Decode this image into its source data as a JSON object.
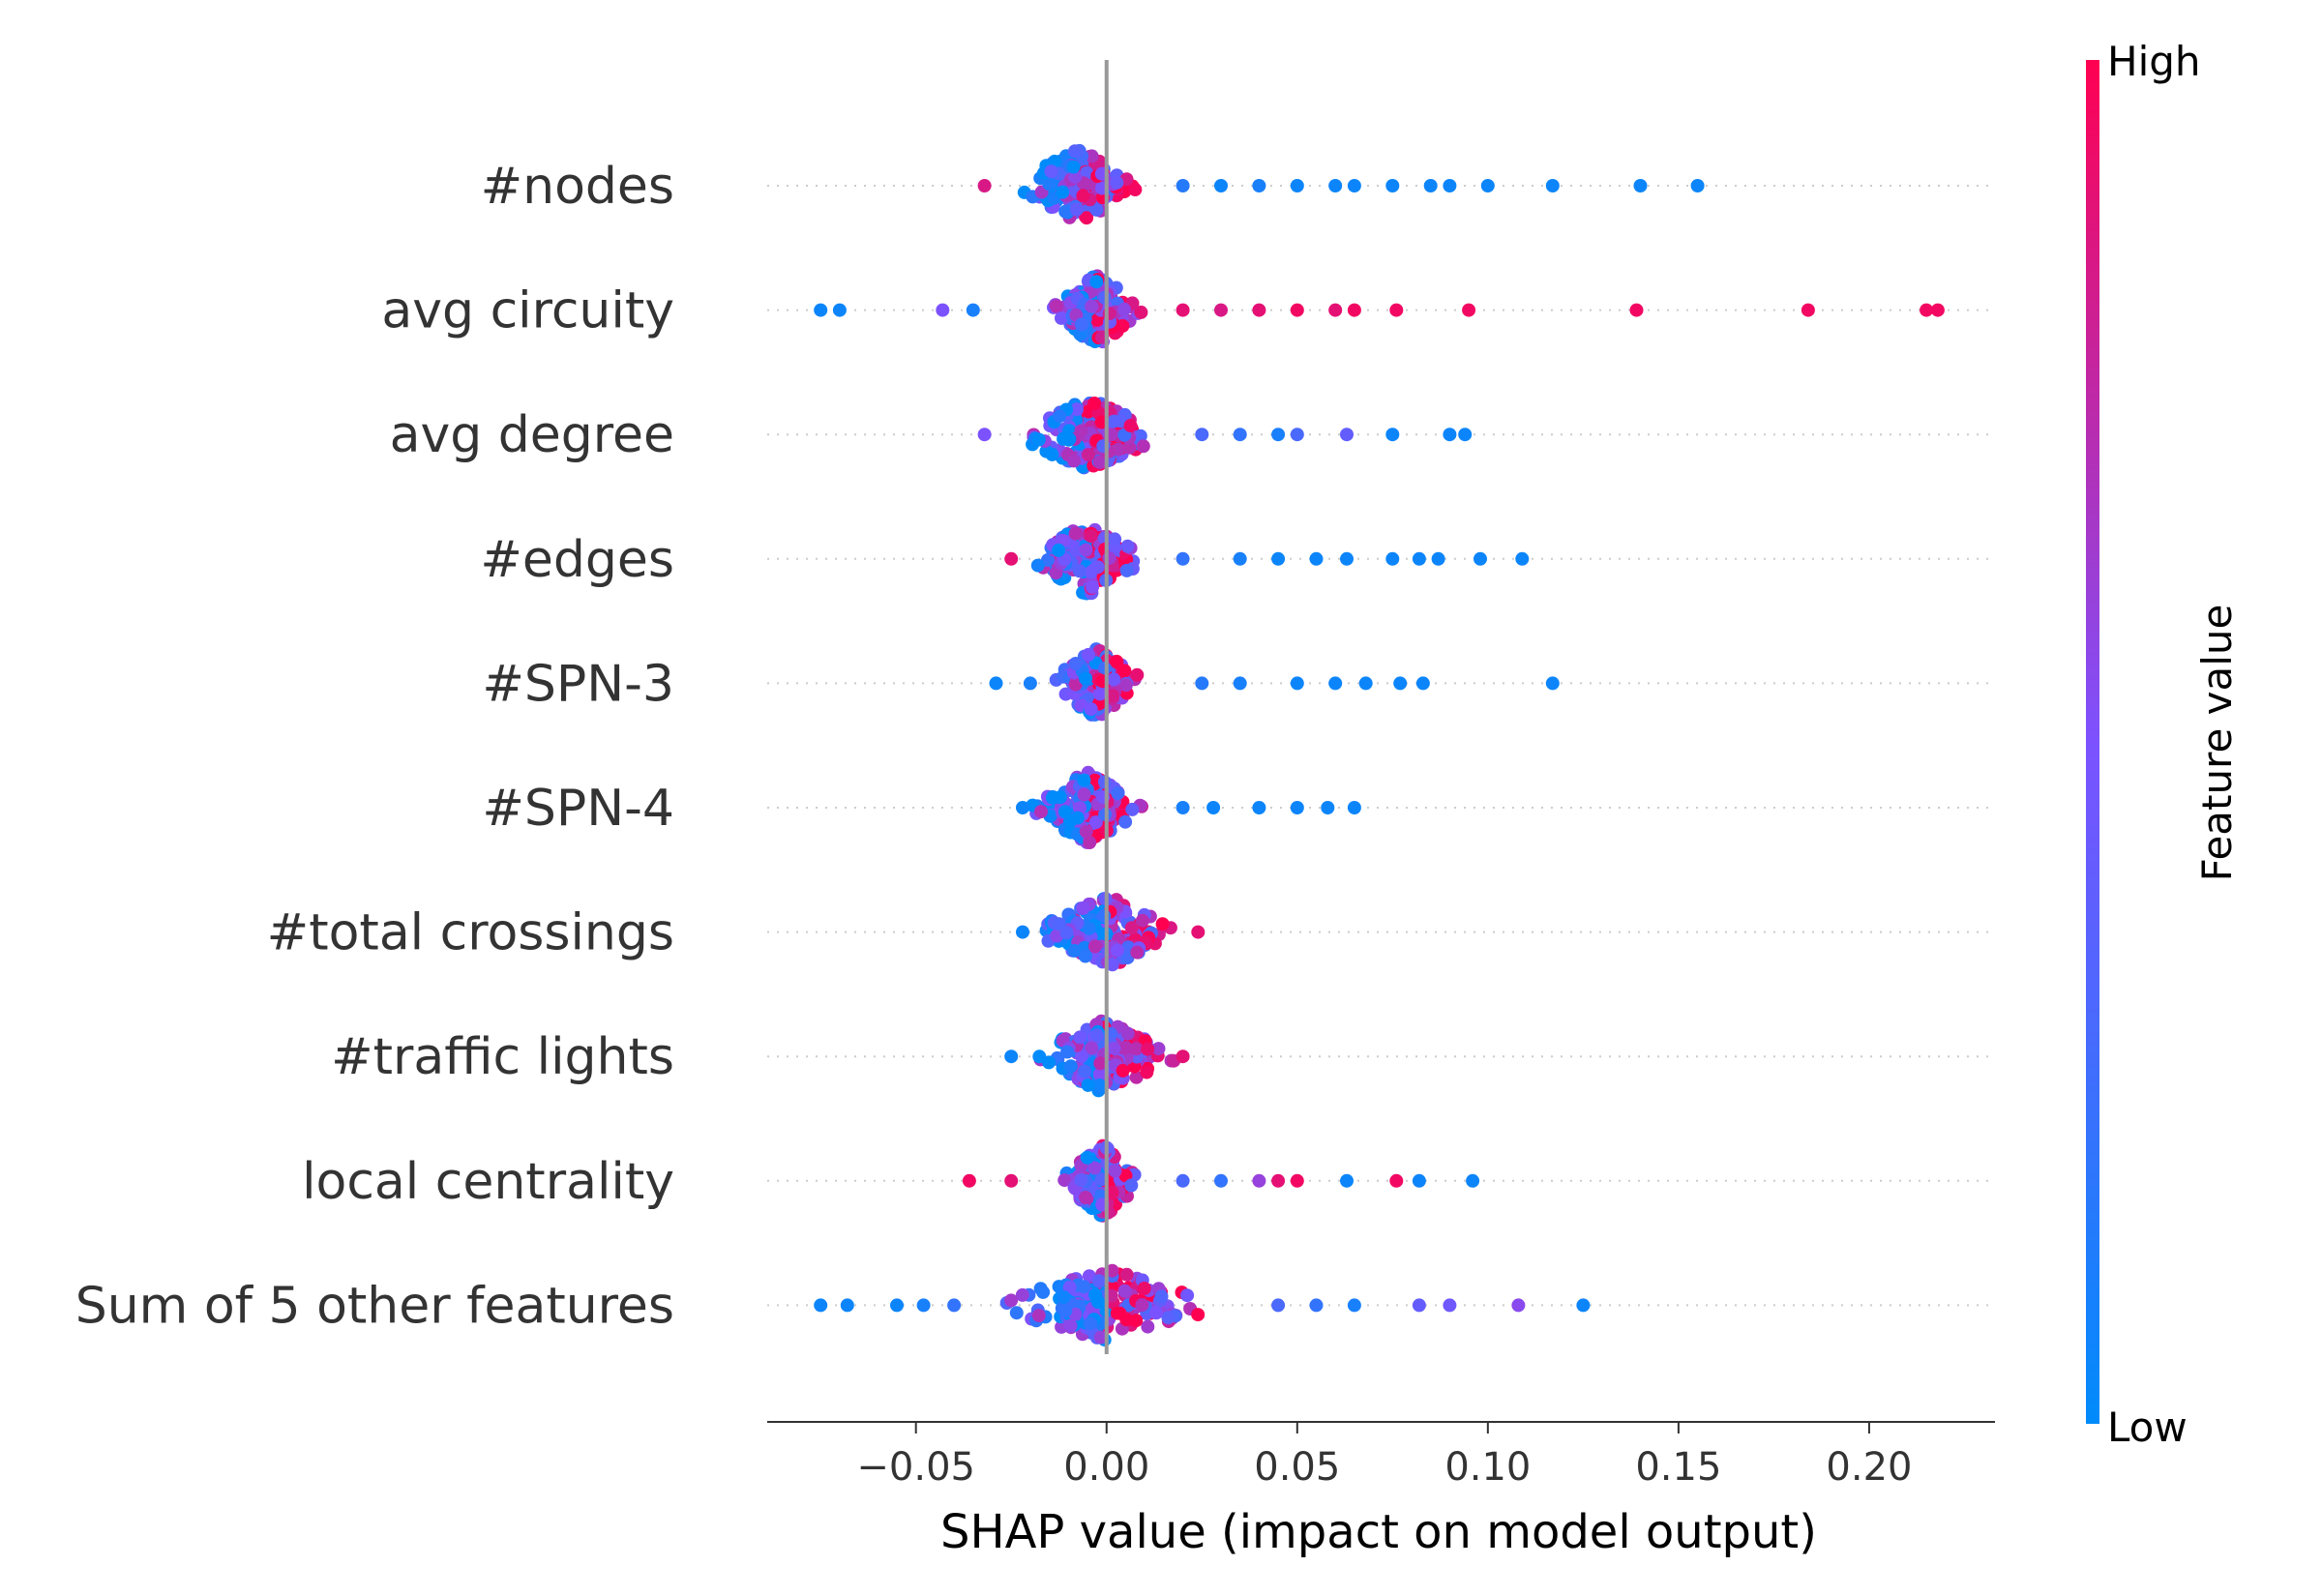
{
  "chart_data": {
    "type": "scatter",
    "subtype": "shap-beeswarm",
    "title": "",
    "xlabel": "SHAP value (impact on model output)",
    "ylabel": "",
    "xlim": [
      -0.089,
      0.233
    ],
    "x_ticks": [
      -0.05,
      0.0,
      0.05,
      0.1,
      0.15,
      0.2
    ],
    "x_tick_labels": [
      "−0.05",
      "0.00",
      "0.05",
      "0.10",
      "0.15",
      "0.20"
    ],
    "grid": false,
    "zero_line": true,
    "colorbar": {
      "label": "Feature value",
      "high_label": "High",
      "low_label": "Low",
      "low_color": "#008bfb",
      "mid_color": "#7c52ff",
      "high_color": "#ff0051"
    },
    "features": [
      {
        "name": "#nodes",
        "core_range": [
          -0.025,
          0.01
        ],
        "outliers": [
          {
            "x": -0.032,
            "v": 0.85
          },
          {
            "x": 0.02,
            "v": 0.15
          },
          {
            "x": 0.03,
            "v": 0.05
          },
          {
            "x": 0.04,
            "v": 0.1
          },
          {
            "x": 0.05,
            "v": 0.05
          },
          {
            "x": 0.06,
            "v": 0.05
          },
          {
            "x": 0.065,
            "v": 0.05
          },
          {
            "x": 0.075,
            "v": 0.05
          },
          {
            "x": 0.085,
            "v": 0.05
          },
          {
            "x": 0.09,
            "v": 0.05
          },
          {
            "x": 0.1,
            "v": 0.05
          },
          {
            "x": 0.117,
            "v": 0.05
          },
          {
            "x": 0.14,
            "v": 0.05
          },
          {
            "x": 0.155,
            "v": 0.05
          }
        ]
      },
      {
        "name": "avg circuity",
        "core_range": [
          -0.015,
          0.01
        ],
        "outliers": [
          {
            "x": -0.075,
            "v": 0.05
          },
          {
            "x": -0.07,
            "v": 0.05
          },
          {
            "x": -0.043,
            "v": 0.5
          },
          {
            "x": -0.035,
            "v": 0.1
          },
          {
            "x": 0.02,
            "v": 0.9
          },
          {
            "x": 0.03,
            "v": 0.85
          },
          {
            "x": 0.04,
            "v": 0.9
          },
          {
            "x": 0.05,
            "v": 0.95
          },
          {
            "x": 0.06,
            "v": 0.9
          },
          {
            "x": 0.065,
            "v": 0.95
          },
          {
            "x": 0.076,
            "v": 0.95
          },
          {
            "x": 0.095,
            "v": 0.95
          },
          {
            "x": 0.139,
            "v": 0.95
          },
          {
            "x": 0.184,
            "v": 0.95
          },
          {
            "x": 0.215,
            "v": 0.95
          },
          {
            "x": 0.218,
            "v": 0.95
          }
        ]
      },
      {
        "name": "avg degree",
        "core_range": [
          -0.025,
          0.015
        ],
        "outliers": [
          {
            "x": -0.032,
            "v": 0.5
          },
          {
            "x": 0.025,
            "v": 0.3
          },
          {
            "x": 0.035,
            "v": 0.2
          },
          {
            "x": 0.045,
            "v": 0.1
          },
          {
            "x": 0.05,
            "v": 0.3
          },
          {
            "x": 0.063,
            "v": 0.4
          },
          {
            "x": 0.075,
            "v": 0.05
          },
          {
            "x": 0.09,
            "v": 0.05
          },
          {
            "x": 0.094,
            "v": 0.05
          }
        ]
      },
      {
        "name": "#edges",
        "core_range": [
          -0.02,
          0.01
        ],
        "outliers": [
          {
            "x": -0.025,
            "v": 0.9
          },
          {
            "x": 0.02,
            "v": 0.2
          },
          {
            "x": 0.035,
            "v": 0.1
          },
          {
            "x": 0.045,
            "v": 0.05
          },
          {
            "x": 0.055,
            "v": 0.05
          },
          {
            "x": 0.063,
            "v": 0.05
          },
          {
            "x": 0.075,
            "v": 0.05
          },
          {
            "x": 0.082,
            "v": 0.05
          },
          {
            "x": 0.087,
            "v": 0.05
          },
          {
            "x": 0.098,
            "v": 0.05
          },
          {
            "x": 0.109,
            "v": 0.05
          }
        ]
      },
      {
        "name": "#SPN-3",
        "core_range": [
          -0.015,
          0.01
        ],
        "outliers": [
          {
            "x": -0.029,
            "v": 0.05
          },
          {
            "x": -0.02,
            "v": 0.1
          },
          {
            "x": 0.025,
            "v": 0.15
          },
          {
            "x": 0.035,
            "v": 0.1
          },
          {
            "x": 0.05,
            "v": 0.05
          },
          {
            "x": 0.06,
            "v": 0.05
          },
          {
            "x": 0.068,
            "v": 0.05
          },
          {
            "x": 0.077,
            "v": 0.05
          },
          {
            "x": 0.083,
            "v": 0.05
          },
          {
            "x": 0.117,
            "v": 0.05
          }
        ]
      },
      {
        "name": "#SPN-4",
        "core_range": [
          -0.02,
          0.01
        ],
        "outliers": [
          {
            "x": -0.022,
            "v": 0.05
          },
          {
            "x": 0.02,
            "v": 0.1
          },
          {
            "x": 0.028,
            "v": 0.05
          },
          {
            "x": 0.04,
            "v": 0.05
          },
          {
            "x": 0.05,
            "v": 0.05
          },
          {
            "x": 0.058,
            "v": 0.05
          },
          {
            "x": 0.065,
            "v": 0.05
          }
        ]
      },
      {
        "name": "#total crossings",
        "core_range": [
          -0.02,
          0.02
        ],
        "outliers": [
          {
            "x": -0.022,
            "v": 0.05
          },
          {
            "x": 0.024,
            "v": 0.9
          }
        ]
      },
      {
        "name": "#traffic lights",
        "core_range": [
          -0.02,
          0.018
        ],
        "outliers": [
          {
            "x": -0.025,
            "v": 0.05
          },
          {
            "x": 0.02,
            "v": 0.9
          }
        ]
      },
      {
        "name": "local centrality",
        "core_range": [
          -0.012,
          0.01
        ],
        "outliers": [
          {
            "x": -0.036,
            "v": 0.95
          },
          {
            "x": -0.025,
            "v": 0.9
          },
          {
            "x": 0.02,
            "v": 0.3
          },
          {
            "x": 0.03,
            "v": 0.2
          },
          {
            "x": 0.04,
            "v": 0.6
          },
          {
            "x": 0.045,
            "v": 0.9
          },
          {
            "x": 0.05,
            "v": 0.95
          },
          {
            "x": 0.063,
            "v": 0.05
          },
          {
            "x": 0.076,
            "v": 0.95
          },
          {
            "x": 0.082,
            "v": 0.05
          },
          {
            "x": 0.096,
            "v": 0.05
          }
        ]
      },
      {
        "name": "Sum of 5 other features",
        "core_range": [
          -0.03,
          0.03
        ],
        "outliers": [
          {
            "x": -0.075,
            "v": 0.05
          },
          {
            "x": -0.068,
            "v": 0.05
          },
          {
            "x": -0.055,
            "v": 0.05
          },
          {
            "x": -0.048,
            "v": 0.1
          },
          {
            "x": -0.04,
            "v": 0.2
          },
          {
            "x": 0.045,
            "v": 0.3
          },
          {
            "x": 0.055,
            "v": 0.2
          },
          {
            "x": 0.065,
            "v": 0.1
          },
          {
            "x": 0.082,
            "v": 0.4
          },
          {
            "x": 0.09,
            "v": 0.45
          },
          {
            "x": 0.108,
            "v": 0.55
          },
          {
            "x": 0.125,
            "v": 0.05
          }
        ]
      }
    ]
  }
}
